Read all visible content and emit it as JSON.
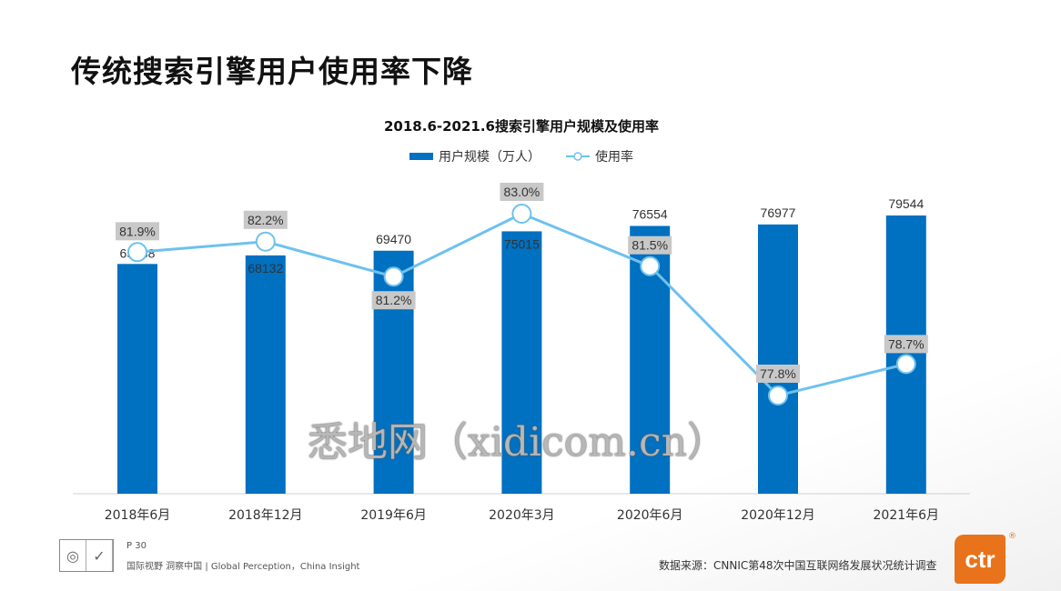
{
  "page_title": "传统搜索引擎用户使用率下降",
  "chart_data": {
    "type": "bar+line",
    "title": "2018.6-2021.6搜索引擎用户规模及使用率",
    "categories": [
      "2018年6月",
      "2018年12月",
      "2019年6月",
      "2020年3月",
      "2020年6月",
      "2020年12月",
      "2021年6月"
    ],
    "series": [
      {
        "name": "用户规模（万人）",
        "type": "bar",
        "color": "#0070C0",
        "values": [
          65688,
          68132,
          69470,
          75015,
          76554,
          76977,
          79544
        ]
      },
      {
        "name": "使用率",
        "type": "line",
        "color": "#6EC1EE",
        "unit": "%",
        "values": [
          81.9,
          82.2,
          81.2,
          83.0,
          81.5,
          77.8,
          78.7
        ]
      }
    ],
    "legend_position": "top",
    "grid": false
  },
  "rate_labels": [
    "81.9%",
    "82.2%",
    "81.2%",
    "83.0%",
    "81.5%",
    "77.8%",
    "78.7%"
  ],
  "footer": {
    "page": "P 30",
    "slogan": "国际视野 洞察中国 |  Global Perception，China Insight",
    "source": "数据来源：CNNIC第48次中国互联网络发展状况统计调查",
    "logo": "ctr"
  },
  "watermark": "悉地网（xidicom.cn）"
}
